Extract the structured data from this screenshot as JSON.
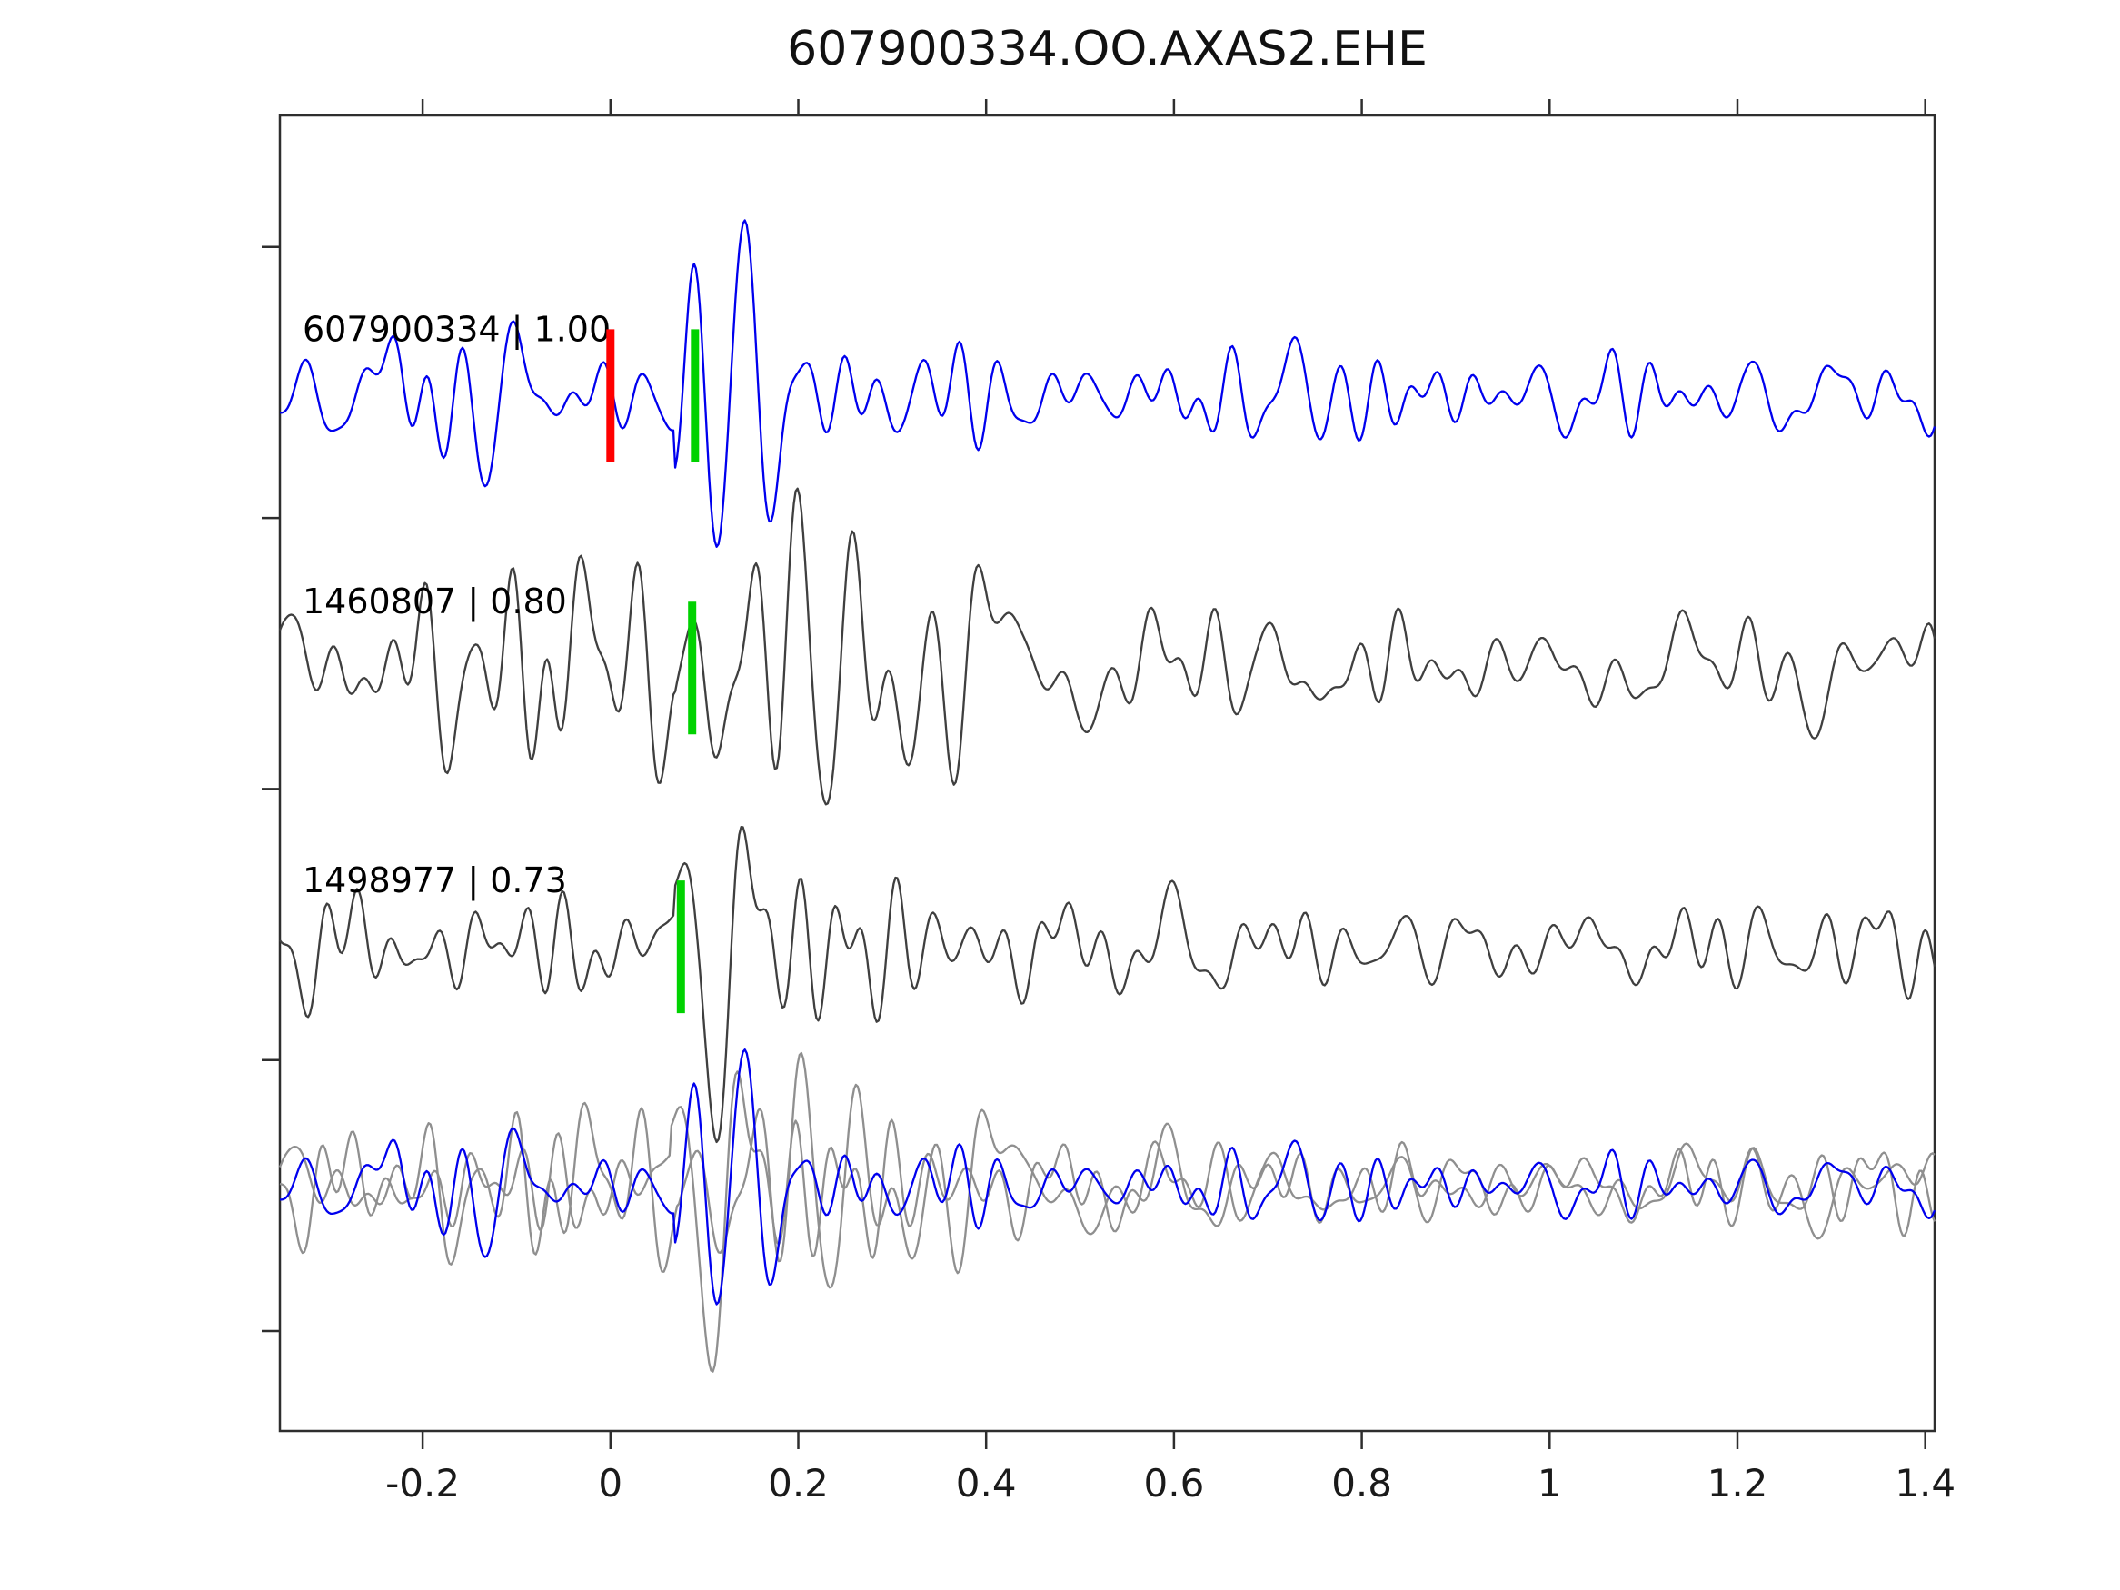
{
  "chart_data": {
    "type": "line",
    "title": "607900334.OO.AXAS2.EHE",
    "xlabel": "",
    "ylabel": "",
    "xlim": [
      -0.352,
      1.41
    ],
    "grid": false,
    "legend": null,
    "x_ticks": [
      {
        "value": -0.2,
        "label": "-0.2"
      },
      {
        "value": 0.0,
        "label": "0"
      },
      {
        "value": 0.2,
        "label": "0.2"
      },
      {
        "value": 0.4,
        "label": "0.4"
      },
      {
        "value": 0.6,
        "label": "0.6"
      },
      {
        "value": 0.8,
        "label": "0.8"
      },
      {
        "value": 1.0,
        "label": "1"
      },
      {
        "value": 1.2,
        "label": "1.2"
      },
      {
        "value": 1.4,
        "label": "1.4"
      }
    ],
    "traces": [
      {
        "id": "607900334",
        "label": "607900334 | 1.00",
        "similarity": 1.0,
        "color": "#0000ee",
        "picks": [
          {
            "t": 0.0,
            "color": "#ff0000",
            "name": "reference-pick"
          },
          {
            "t": 0.09,
            "color": "#00d200",
            "name": "correlation-pick"
          }
        ]
      },
      {
        "id": "1460807",
        "label": "1460807 | 0.80",
        "similarity": 0.8,
        "color": "#3f3f3f",
        "picks": [
          {
            "t": 0.087,
            "color": "#00d200",
            "name": "correlation-pick"
          }
        ]
      },
      {
        "id": "1498977",
        "label": "1498977 | 0.73",
        "similarity": 0.73,
        "color": "#3f3f3f",
        "picks": [
          {
            "t": 0.075,
            "color": "#00d200",
            "name": "correlation-pick"
          }
        ]
      }
    ],
    "overlay": {
      "description": "all traces aligned and superimposed",
      "members": [
        {
          "trace": 0,
          "color": "#0000ee"
        },
        {
          "trace": 1,
          "color": "#8f8f8f"
        },
        {
          "trace": 2,
          "color": "#8f8f8f"
        }
      ]
    }
  }
}
